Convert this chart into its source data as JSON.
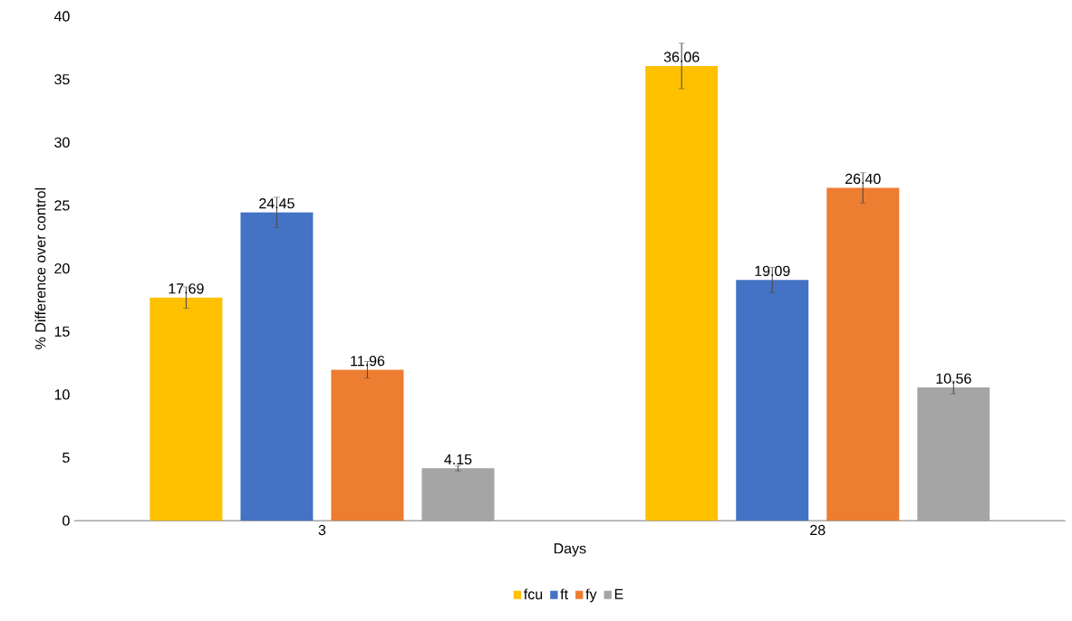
{
  "chart_data": {
    "type": "bar",
    "xlabel": "Days",
    "ylabel": "% Difference over control",
    "categories": [
      "3",
      "28"
    ],
    "series": [
      {
        "name": "fcu",
        "color": "#ffc000",
        "values": [
          17.69,
          36.06
        ],
        "errors": [
          0.85,
          1.8
        ],
        "value_labels": [
          "17.69",
          "36.06"
        ]
      },
      {
        "name": "ft",
        "color": "#4472c4",
        "values": [
          24.45,
          19.09
        ],
        "errors": [
          1.2,
          1.0
        ],
        "value_labels": [
          "24.45",
          "19.09"
        ]
      },
      {
        "name": "fy",
        "color": "#ed7d31",
        "values": [
          11.96,
          26.4
        ],
        "errors": [
          0.65,
          1.2
        ],
        "value_labels": [
          "11.96",
          "26.40"
        ]
      },
      {
        "name": "E",
        "color": "#a5a5a5",
        "values": [
          4.15,
          10.56
        ],
        "errors": [
          0.2,
          0.5
        ],
        "value_labels": [
          "4.15",
          "10.56"
        ]
      }
    ],
    "ylim": [
      0,
      40
    ],
    "yticks": [
      0,
      5,
      10,
      15,
      20,
      25,
      30,
      35,
      40
    ],
    "grid": false,
    "legend": "bottom"
  }
}
